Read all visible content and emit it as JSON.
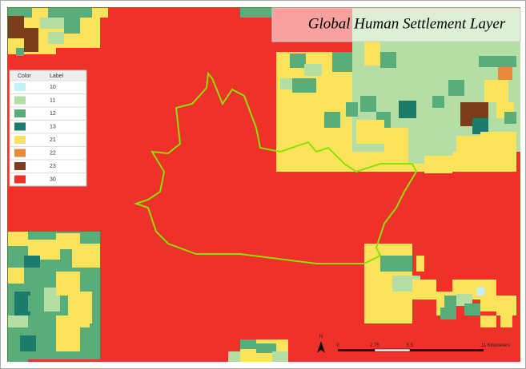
{
  "map": {
    "title": "Global Human Settlement Layer",
    "legend": {
      "header": [
        "Color",
        "Label"
      ],
      "entries": [
        {
          "label": "10",
          "color": "#c4f1f6"
        },
        {
          "label": "11",
          "color": "#b4dea4"
        },
        {
          "label": "12",
          "color": "#58ad7a"
        },
        {
          "label": "13",
          "color": "#1d7b6c"
        },
        {
          "label": "21",
          "color": "#fbe45b"
        },
        {
          "label": "22",
          "color": "#e98a3b"
        },
        {
          "label": "23",
          "color": "#7b3e1d"
        },
        {
          "label": "30",
          "color": "#ee3229"
        }
      ]
    },
    "north_arrow": "N",
    "scale_bar": [
      "0",
      "2.75",
      "5.5",
      "11 Kilometers"
    ]
  }
}
